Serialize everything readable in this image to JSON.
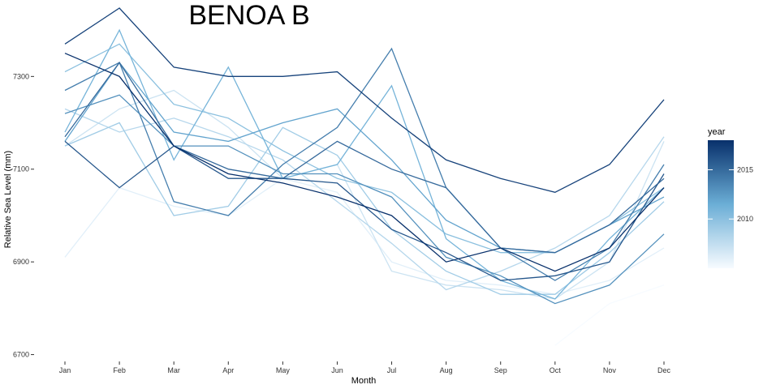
{
  "chart_data": {
    "type": "line",
    "title": "BENOA B",
    "xlabel": "Month",
    "ylabel": "Relative Sea Level (mm)",
    "categories": [
      "Jan",
      "Feb",
      "Mar",
      "Apr",
      "May",
      "Jun",
      "Jul",
      "Aug",
      "Sep",
      "Oct",
      "Nov",
      "Dec"
    ],
    "ylim": [
      6680,
      7395
    ],
    "yticks": [
      6700,
      6900,
      7100,
      7300
    ],
    "grid": false,
    "legend": {
      "title": "year",
      "position": "right",
      "ticks": [
        2010,
        2015
      ],
      "range": [
        2005,
        2018
      ],
      "color_low": "#f7fbff",
      "color_high": "#08306b"
    },
    "series": [
      {
        "year": 2005,
        "values": [
          null,
          null,
          null,
          null,
          null,
          null,
          null,
          null,
          null,
          6720,
          6810,
          6850
        ]
      },
      {
        "year": 2006,
        "values": [
          6910,
          7060,
          7020,
          7000,
          7080,
          7050,
          6900,
          6860,
          6850,
          6830,
          6860,
          6930
        ]
      },
      {
        "year": 2007,
        "values": [
          7150,
          7230,
          7270,
          7190,
          7080,
          7110,
          6880,
          6850,
          6840,
          6820,
          6900,
          7160
        ]
      },
      {
        "year": 2008,
        "values": [
          7230,
          7180,
          7210,
          7170,
          7120,
          7030,
          6940,
          6840,
          6880,
          6930,
          7000,
          7170
        ]
      },
      {
        "year": 2009,
        "values": [
          7150,
          7200,
          7000,
          7020,
          7190,
          7130,
          6970,
          6880,
          6830,
          6830,
          6920,
          7030
        ]
      },
      {
        "year": 2010,
        "values": [
          7310,
          7370,
          7240,
          7210,
          7140,
          7080,
          7050,
          6960,
          6920,
          6920,
          6980,
          7060
        ]
      },
      {
        "year": 2011,
        "values": [
          7180,
          7400,
          7120,
          7320,
          7080,
          7110,
          7280,
          6950,
          6860,
          6820,
          6950,
          7060
        ]
      },
      {
        "year": 2012,
        "values": [
          7160,
          7330,
          7180,
          7160,
          7200,
          7230,
          7120,
          6990,
          6930,
          6920,
          6980,
          7040
        ]
      },
      {
        "year": 2013,
        "values": [
          7220,
          7260,
          7150,
          7150,
          7090,
          7090,
          7040,
          6910,
          6870,
          6810,
          6850,
          6960
        ]
      },
      {
        "year": 2014,
        "values": [
          7270,
          7330,
          7030,
          7000,
          7110,
          7190,
          7360,
          7060,
          6930,
          6860,
          6930,
          7110
        ]
      },
      {
        "year": 2015,
        "values": [
          7170,
          7330,
          7150,
          7100,
          7080,
          7160,
          7100,
          7060,
          6930,
          6920,
          6980,
          7080
        ]
      },
      {
        "year": 2016,
        "values": [
          7160,
          7060,
          7150,
          7080,
          7080,
          7070,
          6970,
          6920,
          6860,
          6870,
          6900,
          7090
        ]
      },
      {
        "year": 2017,
        "values": [
          7370,
          7450,
          7320,
          7300,
          7300,
          7310,
          7210,
          7120,
          7080,
          7050,
          7110,
          7250
        ]
      },
      {
        "year": 2018,
        "values": [
          7350,
          7300,
          7150,
          7090,
          7070,
          7040,
          7000,
          6900,
          6930,
          6880,
          6930,
          7060
        ]
      }
    ]
  }
}
